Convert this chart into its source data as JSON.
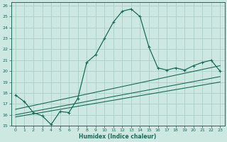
{
  "xlabel": "Humidex (Indice chaleur)",
  "bg_color": "#cce8e0",
  "grid_color": "#aacfc8",
  "line_color": "#1a6b5a",
  "xlim": [
    -0.5,
    23.5
  ],
  "ylim": [
    15,
    26.3
  ],
  "xticks": [
    0,
    1,
    2,
    3,
    4,
    5,
    6,
    7,
    8,
    9,
    10,
    11,
    12,
    13,
    14,
    15,
    16,
    17,
    18,
    19,
    20,
    21,
    22,
    23
  ],
  "yticks": [
    15,
    16,
    17,
    18,
    19,
    20,
    21,
    22,
    23,
    24,
    25,
    26
  ],
  "main_x": [
    0,
    1,
    2,
    3,
    4,
    5,
    6,
    7,
    8,
    9,
    10,
    11,
    12,
    13,
    14,
    15,
    16,
    17,
    18,
    19,
    20,
    21,
    22,
    23
  ],
  "main_y": [
    17.8,
    17.2,
    16.2,
    15.9,
    15.1,
    16.3,
    16.2,
    17.5,
    20.8,
    21.5,
    23.0,
    24.5,
    25.5,
    25.7,
    25.0,
    22.2,
    20.3,
    20.1,
    20.3,
    20.1,
    20.5,
    20.8,
    21.0,
    20.0
  ],
  "line1_x": [
    0,
    23
  ],
  "line1_y": [
    16.5,
    20.5
  ],
  "line2_x": [
    0,
    23
  ],
  "line2_y": [
    16.0,
    19.5
  ],
  "line3_x": [
    0,
    23
  ],
  "line3_y": [
    15.8,
    19.0
  ]
}
